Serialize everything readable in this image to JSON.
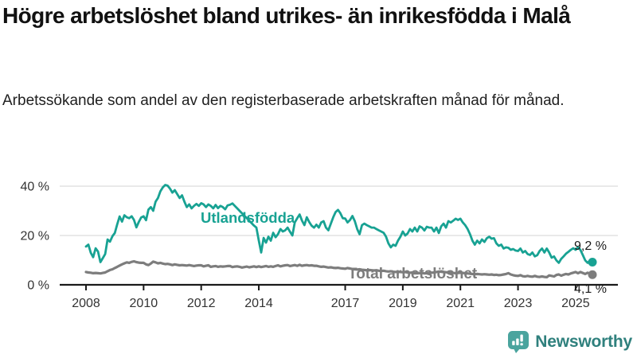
{
  "header": {
    "title": "Högre arbetslöshet bland utrikes- än inrikesfödda i Malå",
    "subtitle": "Arbetssökande som andel av den registerbaserade arbetskraften månad för månad."
  },
  "chart_data": {
    "type": "line",
    "title": "Högre arbetslöshet bland utrikes- än inrikesfödda i Malå",
    "subtitle": "Arbetssökande som andel av den registerbaserade arbetskraften månad för månad.",
    "unit": "%",
    "x_start_year": 2008,
    "x_step_months": 1,
    "x_end": "2025-08",
    "x_ticks": [
      {
        "label": "2008",
        "year": 2008
      },
      {
        "label": "2010",
        "year": 2010
      },
      {
        "label": "2012",
        "year": 2012
      },
      {
        "label": "2014",
        "year": 2014
      },
      {
        "label": "2017",
        "year": 2017
      },
      {
        "label": "2019",
        "year": 2019
      },
      {
        "label": "2021",
        "year": 2021
      },
      {
        "label": "2023",
        "year": 2023
      },
      {
        "label": "2025",
        "year": 2025
      }
    ],
    "y_ticks": [
      {
        "label": "0 %",
        "value": 0
      },
      {
        "label": "20 %",
        "value": 20
      },
      {
        "label": "40 %",
        "value": 40
      }
    ],
    "ylim": [
      0,
      43
    ],
    "grid": "horizontal",
    "legend": "inline-labels",
    "series": [
      {
        "name": "Utlandsfödda",
        "color": "#18a293",
        "end_label": "9,2 %",
        "end_value": 9.2,
        "values": [
          15.5,
          16.3,
          13.0,
          11.2,
          14.8,
          13.5,
          9.2,
          10.8,
          12.5,
          18.4,
          17.5,
          19.7,
          21.0,
          24.5,
          27.7,
          25.6,
          28.2,
          27.4,
          27.0,
          27.8,
          26.3,
          23.3,
          25.5,
          27.3,
          27.8,
          26.2,
          30.5,
          31.5,
          30.0,
          33.7,
          35.2,
          37.9,
          39.5,
          40.5,
          40.2,
          39.0,
          37.4,
          38.4,
          36.8,
          35.2,
          36.3,
          33.7,
          31.5,
          32.6,
          31.0,
          32.0,
          32.8,
          32.0,
          33.1,
          32.6,
          31.5,
          32.6,
          32.0,
          31.0,
          32.4,
          31.1,
          32.0,
          31.5,
          30.6,
          32.2,
          32.5,
          33.0,
          32.0,
          31.0,
          30.0,
          29.0,
          28.0,
          27.0,
          26.0,
          25.0,
          24.0,
          23.2,
          18.0,
          13.1,
          19.0,
          17.1,
          19.5,
          17.9,
          21.1,
          19.3,
          20.5,
          22.6,
          21.6,
          22.1,
          23.2,
          21.5,
          20.0,
          25.3,
          27.0,
          28.5,
          26.0,
          24.2,
          27.4,
          25.5,
          24.0,
          23.2,
          24.4,
          23.2,
          25.3,
          25.8,
          23.2,
          22.1,
          24.8,
          27.4,
          29.5,
          30.4,
          29.0,
          27.0,
          26.9,
          25.3,
          26.3,
          27.9,
          25.8,
          22.6,
          20.5,
          24.2,
          24.8,
          24.2,
          23.7,
          23.2,
          23.2,
          22.6,
          22.1,
          21.6,
          21.1,
          19.5,
          16.8,
          15.2,
          16.3,
          15.8,
          17.9,
          19.5,
          21.6,
          20.0,
          20.8,
          22.6,
          21.6,
          23.2,
          21.6,
          23.7,
          23.2,
          22.0,
          23.5,
          23.2,
          23.2,
          21.6,
          23.2,
          21.0,
          23.7,
          24.8,
          23.2,
          25.8,
          25.3,
          26.0,
          26.8,
          26.3,
          26.8,
          25.3,
          24.2,
          22.6,
          20.5,
          17.9,
          16.3,
          17.9,
          16.8,
          18.4,
          17.4,
          18.9,
          19.5,
          18.7,
          18.9,
          16.8,
          15.8,
          16.3,
          14.7,
          15.2,
          15.0,
          14.2,
          14.5,
          13.9,
          13.7,
          14.7,
          13.1,
          13.7,
          12.5,
          12.1,
          13.1,
          11.5,
          12.0,
          13.7,
          14.7,
          13.1,
          14.7,
          13.1,
          11.0,
          11.5,
          9.9,
          8.9,
          10.5,
          11.5,
          12.6,
          13.4,
          14.2,
          14.8,
          14.2,
          15.2,
          14.2,
          12.1,
          9.9,
          8.9,
          9.9,
          9.2
        ]
      },
      {
        "name": "Total arbetslöshet",
        "color": "#7d7d7d",
        "end_label": "4,1 %",
        "end_value": 4.1,
        "values": [
          5.2,
          5.0,
          4.9,
          4.7,
          4.8,
          4.7,
          4.6,
          4.8,
          5.0,
          5.5,
          6.0,
          6.3,
          6.8,
          7.3,
          7.8,
          8.3,
          8.7,
          9.1,
          8.9,
          9.3,
          9.5,
          9.2,
          9.0,
          8.9,
          8.9,
          8.3,
          8.0,
          8.6,
          9.4,
          9.1,
          8.7,
          8.9,
          8.6,
          8.4,
          8.5,
          8.3,
          8.0,
          8.3,
          8.1,
          7.9,
          8.0,
          7.9,
          7.8,
          8.0,
          7.8,
          7.6,
          7.8,
          7.9,
          7.9,
          7.5,
          7.7,
          7.9,
          7.3,
          7.5,
          7.6,
          7.3,
          7.5,
          7.4,
          7.5,
          7.6,
          7.6,
          7.2,
          7.4,
          7.5,
          7.3,
          7.0,
          7.2,
          7.4,
          7.1,
          7.3,
          7.5,
          7.2,
          7.5,
          7.2,
          7.4,
          7.6,
          7.3,
          7.5,
          7.3,
          7.6,
          7.9,
          7.5,
          7.7,
          7.9,
          8.0,
          7.6,
          7.8,
          8.0,
          7.7,
          8.1,
          7.7,
          7.9,
          8.0,
          7.8,
          7.9,
          7.7,
          7.7,
          7.5,
          7.3,
          7.4,
          7.2,
          7.0,
          7.1,
          6.9,
          6.8,
          6.9,
          6.7,
          6.6,
          6.5,
          6.8,
          6.6,
          6.4,
          6.3,
          6.2,
          6.3,
          6.1,
          6.0,
          5.9,
          6.0,
          5.9,
          5.8,
          5.9,
          5.7,
          5.6,
          5.7,
          5.5,
          5.4,
          5.5,
          5.3,
          5.2,
          5.3,
          5.2,
          5.1,
          5.2,
          5.0,
          4.9,
          5.0,
          4.8,
          4.9,
          4.7,
          4.8,
          4.6,
          4.7,
          4.8,
          4.9,
          5.0,
          5.2,
          5.4,
          5.3,
          5.2,
          5.1,
          5.0,
          4.9,
          4.8,
          4.7,
          4.8,
          4.9,
          4.8,
          4.7,
          4.6,
          4.5,
          4.4,
          4.3,
          4.4,
          4.3,
          4.2,
          4.3,
          4.2,
          4.1,
          4.2,
          4.0,
          4.1,
          3.9,
          4.0,
          4.2,
          4.4,
          4.7,
          4.2,
          3.9,
          3.7,
          3.6,
          3.9,
          3.5,
          3.4,
          3.6,
          3.4,
          3.3,
          3.6,
          3.3,
          3.2,
          3.4,
          3.2,
          3.1,
          3.8,
          3.6,
          3.4,
          4.0,
          4.2,
          3.7,
          4.1,
          4.4,
          4.2,
          4.6,
          4.9,
          5.2,
          4.7,
          5.2,
          4.8,
          4.4,
          4.9,
          4.5,
          4.1
        ]
      }
    ]
  },
  "footer": {
    "brand": "Newsworthy",
    "logo_icon": "bar-chart-speech-bubble-icon",
    "brand_color": "#2f807d",
    "logo_bubble_color": "#4aa49e"
  },
  "colors": {
    "series_foreign_born": "#18a293",
    "series_total": "#7d7d7d",
    "gridline": "#dcdcdc",
    "axis": "#1a1a1a",
    "tick_label": "#333333"
  }
}
